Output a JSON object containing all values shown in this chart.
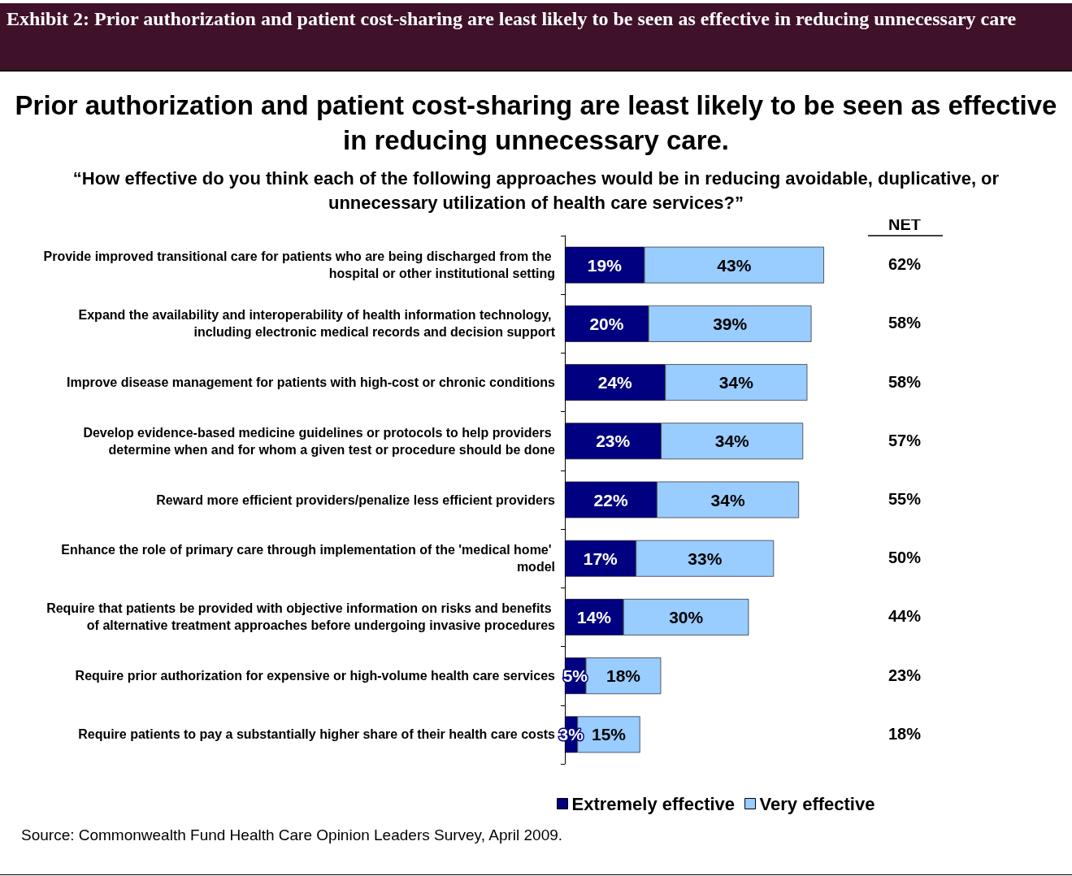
{
  "chart_data": {
    "type": "bar",
    "orientation": "horizontal",
    "stacked": true,
    "title": "Exhibit 2: Prior authorization and patient cost-sharing are least likely to be seen as effective in reducing unnecessary care",
    "subtitle": "Prior authorization and patient cost-sharing are least likely to be seen as effective in reducing unnecessary care.",
    "categories": [
      "Provide improved transitional care for patients who are being discharged from the hospital or other institutional setting",
      "Expand the availability and interoperability of health information technology, including electronic medical records and decision support",
      "Improve disease management for patients with high-cost or chronic conditions",
      "Develop evidence-based medicine guidelines or protocols to help providers determine when and for whom a given test or procedure should be done",
      "Reward more efficient providers/penalize less efficient providers",
      "Enhance the role of primary care through implementation of the 'medical home' model",
      "Require that patients be provided with objective information on risks and benefits of alternative treatment approaches before undergoing invasive procedures",
      "Require prior authorization for expensive or high-volume health care services",
      "Require patients to pay a substantially higher share of their health care costs"
    ],
    "series": [
      {
        "name": "Extremely effective",
        "color": "#000080",
        "values": [
          19,
          20,
          24,
          23,
          22,
          17,
          14,
          5,
          3
        ],
        "value_labels": [
          "19%",
          "20%",
          "24%",
          "23%",
          "22%",
          "17%",
          "14%",
          "5%",
          "3%"
        ]
      },
      {
        "name": "Very effective",
        "color": "#99ccff",
        "values": [
          43,
          39,
          34,
          34,
          34,
          33,
          30,
          18,
          15
        ],
        "value_labels": [
          "43%",
          "39%",
          "34%",
          "34%",
          "34%",
          "33%",
          "30%",
          "18%",
          "15%"
        ]
      }
    ],
    "legend": "bottom",
    "annotations": [
      "“How effective do you think each of the following approaches would be in reducing avoidable, duplicative, or unnecessary utilization of health care services?”",
      "Source: Commonwealth Fund Health Care Opinion Leaders Survey, April 2009.",
      "NET",
      "62%",
      "58%",
      "58%",
      "57%",
      "55%",
      "50%",
      "44%",
      "23%",
      "18%"
    ]
  }
}
